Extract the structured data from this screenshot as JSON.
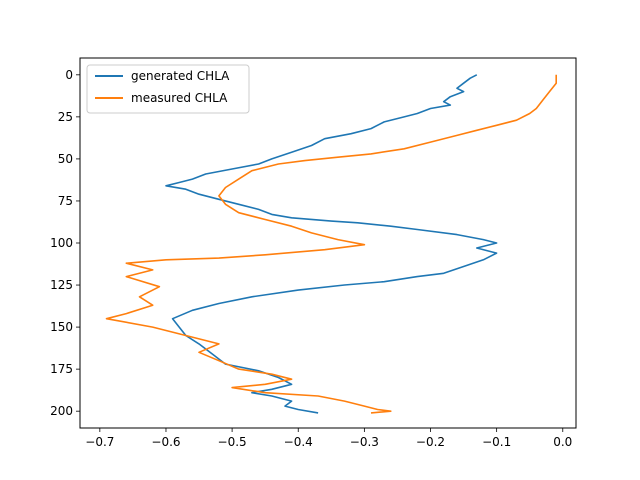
{
  "chart_data": {
    "type": "line",
    "title": "",
    "xlabel": "",
    "ylabel": "",
    "xlim": [
      -0.73,
      0.02
    ],
    "ylim": [
      210,
      -10
    ],
    "y_inverted": true,
    "grid": false,
    "legend_position": "top-left",
    "x_ticks": [
      {
        "value": -0.7,
        "label": "−0.7"
      },
      {
        "value": -0.6,
        "label": "−0.6"
      },
      {
        "value": -0.5,
        "label": "−0.5"
      },
      {
        "value": -0.4,
        "label": "−0.4"
      },
      {
        "value": -0.3,
        "label": "−0.3"
      },
      {
        "value": -0.2,
        "label": "−0.2"
      },
      {
        "value": -0.1,
        "label": "−0.1"
      },
      {
        "value": 0.0,
        "label": "0.0"
      }
    ],
    "y_ticks": [
      {
        "value": 0,
        "label": "0"
      },
      {
        "value": 25,
        "label": "25"
      },
      {
        "value": 50,
        "label": "50"
      },
      {
        "value": 75,
        "label": "75"
      },
      {
        "value": 100,
        "label": "100"
      },
      {
        "value": 125,
        "label": "125"
      },
      {
        "value": 150,
        "label": "150"
      },
      {
        "value": 175,
        "label": "175"
      },
      {
        "value": 200,
        "label": "200"
      }
    ],
    "series": [
      {
        "name": "generated CHLA",
        "color": "#1f77b4",
        "points": [
          [
            -0.13,
            0
          ],
          [
            -0.14,
            2
          ],
          [
            -0.15,
            5
          ],
          [
            -0.16,
            8
          ],
          [
            -0.15,
            10
          ],
          [
            -0.17,
            13
          ],
          [
            -0.18,
            16
          ],
          [
            -0.17,
            18
          ],
          [
            -0.2,
            20
          ],
          [
            -0.22,
            23
          ],
          [
            -0.24,
            25
          ],
          [
            -0.27,
            28
          ],
          [
            -0.29,
            32
          ],
          [
            -0.32,
            35
          ],
          [
            -0.36,
            38
          ],
          [
            -0.38,
            42
          ],
          [
            -0.41,
            46
          ],
          [
            -0.44,
            50
          ],
          [
            -0.46,
            53
          ],
          [
            -0.5,
            56
          ],
          [
            -0.54,
            59
          ],
          [
            -0.56,
            62
          ],
          [
            -0.58,
            64
          ],
          [
            -0.6,
            66
          ],
          [
            -0.57,
            68
          ],
          [
            -0.55,
            71
          ],
          [
            -0.52,
            74
          ],
          [
            -0.49,
            77
          ],
          [
            -0.46,
            80
          ],
          [
            -0.44,
            83
          ],
          [
            -0.41,
            85
          ],
          [
            -0.35,
            87
          ],
          [
            -0.31,
            88
          ],
          [
            -0.26,
            90
          ],
          [
            -0.22,
            92
          ],
          [
            -0.16,
            95
          ],
          [
            -0.12,
            98
          ],
          [
            -0.1,
            100
          ],
          [
            -0.13,
            103
          ],
          [
            -0.1,
            106
          ],
          [
            -0.12,
            110
          ],
          [
            -0.15,
            114
          ],
          [
            -0.18,
            118
          ],
          [
            -0.22,
            120
          ],
          [
            -0.27,
            123
          ],
          [
            -0.33,
            125
          ],
          [
            -0.4,
            128
          ],
          [
            -0.47,
            132
          ],
          [
            -0.52,
            136
          ],
          [
            -0.56,
            140
          ],
          [
            -0.59,
            145
          ],
          [
            -0.58,
            150
          ],
          [
            -0.57,
            155
          ],
          [
            -0.55,
            160
          ],
          [
            -0.53,
            166
          ],
          [
            -0.51,
            172
          ],
          [
            -0.46,
            176
          ],
          [
            -0.43,
            180
          ],
          [
            -0.41,
            184
          ],
          [
            -0.44,
            187
          ],
          [
            -0.47,
            189
          ],
          [
            -0.44,
            191
          ],
          [
            -0.41,
            194
          ],
          [
            -0.42,
            197
          ],
          [
            -0.4,
            199
          ],
          [
            -0.37,
            201
          ]
        ]
      },
      {
        "name": "measured CHLA",
        "color": "#ff7f0e",
        "points": [
          [
            -0.01,
            0
          ],
          [
            -0.01,
            5
          ],
          [
            -0.02,
            10
          ],
          [
            -0.03,
            15
          ],
          [
            -0.04,
            20
          ],
          [
            -0.05,
            23
          ],
          [
            -0.07,
            27
          ],
          [
            -0.1,
            30
          ],
          [
            -0.13,
            33
          ],
          [
            -0.16,
            36
          ],
          [
            -0.2,
            40
          ],
          [
            -0.24,
            44
          ],
          [
            -0.29,
            47
          ],
          [
            -0.34,
            49
          ],
          [
            -0.39,
            51
          ],
          [
            -0.43,
            53
          ],
          [
            -0.47,
            57
          ],
          [
            -0.49,
            62
          ],
          [
            -0.51,
            67
          ],
          [
            -0.52,
            72
          ],
          [
            -0.51,
            77
          ],
          [
            -0.49,
            82
          ],
          [
            -0.45,
            86
          ],
          [
            -0.41,
            90
          ],
          [
            -0.38,
            94
          ],
          [
            -0.34,
            98
          ],
          [
            -0.3,
            101
          ],
          [
            -0.36,
            104
          ],
          [
            -0.45,
            107
          ],
          [
            -0.52,
            109
          ],
          [
            -0.6,
            110
          ],
          [
            -0.66,
            112
          ],
          [
            -0.62,
            116
          ],
          [
            -0.66,
            120
          ],
          [
            -0.61,
            126
          ],
          [
            -0.64,
            132
          ],
          [
            -0.62,
            137
          ],
          [
            -0.66,
            142
          ],
          [
            -0.69,
            145
          ],
          [
            -0.62,
            150
          ],
          [
            -0.57,
            155
          ],
          [
            -0.52,
            160
          ],
          [
            -0.55,
            165
          ],
          [
            -0.52,
            170
          ],
          [
            -0.49,
            175
          ],
          [
            -0.44,
            178
          ],
          [
            -0.41,
            181
          ],
          [
            -0.45,
            184
          ],
          [
            -0.5,
            186
          ],
          [
            -0.45,
            189
          ],
          [
            -0.37,
            191
          ],
          [
            -0.33,
            194
          ],
          [
            -0.3,
            197
          ],
          [
            -0.28,
            199
          ],
          [
            -0.26,
            200
          ],
          [
            -0.29,
            201
          ]
        ]
      }
    ]
  }
}
